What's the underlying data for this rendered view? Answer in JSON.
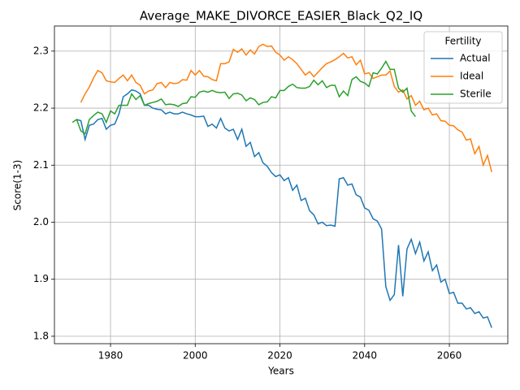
{
  "chart_data": {
    "type": "line",
    "title": "Average_MAKE_DIVORCE_EASIER_Black_Q2_IQ",
    "x_label": "Years",
    "y_label": "Score(1-3)",
    "legend_title": "Fertility",
    "legend_position": "upper right",
    "grid": true,
    "xlim": [
      1966.76,
      2073.8
    ],
    "ylim": [
      1.787,
      2.344
    ],
    "xticks": [
      1980,
      2000,
      2020,
      2040,
      2060
    ],
    "yticks": [
      1.8,
      1.9,
      {
        "value": 2,
        "label": "2.0"
      },
      2.1,
      2.2,
      2.3
    ],
    "x": [
      1971,
      1972,
      1973,
      1974,
      1975,
      1976,
      1977,
      1978,
      1979,
      1980,
      1981,
      1982,
      1983,
      1984,
      1985,
      1986,
      1987,
      1988,
      1989,
      1990,
      1991,
      1992,
      1993,
      1994,
      1995,
      1996,
      1997,
      1998,
      1999,
      2000,
      2001,
      2002,
      2003,
      2004,
      2005,
      2006,
      2007,
      2008,
      2009,
      2010,
      2011,
      2012,
      2013,
      2014,
      2015,
      2016,
      2017,
      2018,
      2019,
      2020,
      2021,
      2022,
      2023,
      2024,
      2025,
      2026,
      2027,
      2028,
      2029,
      2030,
      2031,
      2032,
      2033,
      2034,
      2035,
      2036,
      2037,
      2038,
      2039,
      2040,
      2041,
      2042,
      2043,
      2044,
      2045,
      2046,
      2047,
      2048,
      2049,
      2050,
      2051,
      2052,
      2053,
      2054,
      2055,
      2056,
      2057,
      2058,
      2059,
      2060,
      2061,
      2062,
      2063,
      2064,
      2065,
      2066,
      2067,
      2068,
      2069,
      2070
    ],
    "series": [
      {
        "name": "Actual",
        "color": "#1f77b4",
        "values": [
          null,
          2.18,
          2.178,
          2.145,
          2.17,
          2.172,
          2.18,
          2.182,
          2.163,
          2.17,
          2.172,
          2.19,
          2.22,
          2.225,
          2.232,
          2.23,
          2.225,
          2.205,
          2.205,
          2.2,
          2.198,
          2.197,
          2.19,
          2.193,
          2.19,
          2.19,
          2.193,
          2.19,
          2.188,
          2.185,
          2.185,
          2.186,
          2.168,
          2.172,
          2.165,
          2.182,
          2.165,
          2.16,
          2.163,
          2.145,
          2.163,
          2.133,
          2.14,
          2.115,
          2.122,
          2.104,
          2.098,
          2.087,
          2.08,
          2.083,
          2.073,
          2.078,
          2.056,
          2.065,
          2.038,
          2.042,
          2.02,
          2.013,
          1.997,
          2.0,
          1.994,
          1.995,
          1.993,
          2.076,
          2.078,
          2.065,
          2.067,
          2.048,
          2.044,
          2.025,
          2.021,
          2.006,
          2.002,
          1.988,
          1.887,
          1.863,
          1.873,
          1.96,
          1.87,
          1.953,
          1.97,
          1.945,
          1.965,
          1.932,
          1.948,
          1.915,
          1.925,
          1.895,
          1.9,
          1.875,
          1.877,
          1.858,
          1.858,
          1.848,
          1.85,
          1.84,
          1.843,
          1.832,
          1.834,
          1.815
        ]
      },
      {
        "name": "Ideal",
        "color": "#ff7f0e",
        "values": [
          null,
          null,
          2.21,
          2.225,
          2.237,
          2.253,
          2.266,
          2.262,
          2.248,
          2.246,
          2.245,
          2.252,
          2.258,
          2.248,
          2.258,
          2.245,
          2.24,
          2.225,
          2.23,
          2.232,
          2.243,
          2.245,
          2.236,
          2.245,
          2.243,
          2.244,
          2.25,
          2.249,
          2.266,
          2.258,
          2.266,
          2.256,
          2.255,
          2.25,
          2.248,
          2.278,
          2.278,
          2.281,
          2.303,
          2.298,
          2.304,
          2.293,
          2.302,
          2.295,
          2.308,
          2.312,
          2.308,
          2.309,
          2.298,
          2.293,
          2.284,
          2.29,
          2.285,
          2.278,
          2.268,
          2.258,
          2.264,
          2.255,
          2.263,
          2.271,
          2.278,
          2.281,
          2.285,
          2.29,
          2.296,
          2.288,
          2.29,
          2.276,
          2.284,
          2.26,
          2.262,
          2.252,
          2.255,
          2.258,
          2.258,
          2.265,
          2.238,
          2.228,
          2.232,
          2.216,
          2.222,
          2.205,
          2.212,
          2.197,
          2.2,
          2.188,
          2.19,
          2.178,
          2.177,
          2.17,
          2.169,
          2.162,
          2.158,
          2.144,
          2.146,
          2.12,
          2.133,
          2.1,
          2.117,
          2.088
        ]
      },
      {
        "name": "Sterile",
        "color": "#2ca02c",
        "values": [
          2.175,
          2.18,
          2.16,
          2.155,
          2.18,
          2.187,
          2.193,
          2.19,
          2.175,
          2.195,
          2.19,
          2.205,
          2.205,
          2.205,
          2.225,
          2.215,
          2.222,
          2.205,
          2.208,
          2.21,
          2.212,
          2.216,
          2.206,
          2.207,
          2.206,
          2.203,
          2.208,
          2.209,
          2.22,
          2.219,
          2.228,
          2.23,
          2.228,
          2.231,
          2.228,
          2.227,
          2.228,
          2.217,
          2.225,
          2.226,
          2.223,
          2.213,
          2.218,
          2.215,
          2.206,
          2.21,
          2.211,
          2.22,
          2.218,
          2.231,
          2.231,
          2.238,
          2.242,
          2.236,
          2.235,
          2.235,
          2.238,
          2.249,
          2.241,
          2.248,
          2.236,
          2.24,
          2.24,
          2.22,
          2.23,
          2.222,
          2.25,
          2.255,
          2.247,
          2.244,
          2.238,
          2.262,
          2.26,
          2.27,
          2.282,
          2.268,
          2.268,
          2.235,
          2.228,
          2.235,
          2.195,
          2.185,
          null,
          null,
          null,
          null,
          null,
          null,
          null,
          null,
          null,
          null,
          null,
          null,
          null,
          null,
          null,
          null,
          null,
          null
        ]
      }
    ]
  }
}
